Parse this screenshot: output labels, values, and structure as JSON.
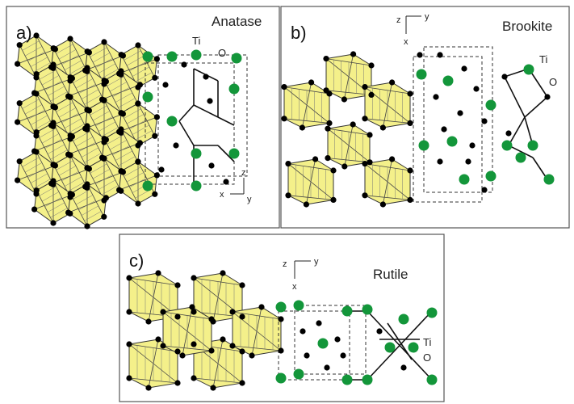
{
  "panels": [
    {
      "label": "a)",
      "name": "Anatase",
      "ti_label": "Ti",
      "o_label": "O",
      "axes": {
        "z": "z",
        "x": "x",
        "y": "y"
      }
    },
    {
      "label": "b)",
      "name": "Brookite",
      "ti_label": "Ti",
      "o_label": "O",
      "axes": {
        "z": "z",
        "x": "x",
        "y": "y"
      }
    },
    {
      "label": "c)",
      "name": "Rutile",
      "ti_label": "Ti",
      "o_label": "O",
      "axes": {
        "z": "z",
        "x": "x",
        "y": "y"
      }
    }
  ]
}
